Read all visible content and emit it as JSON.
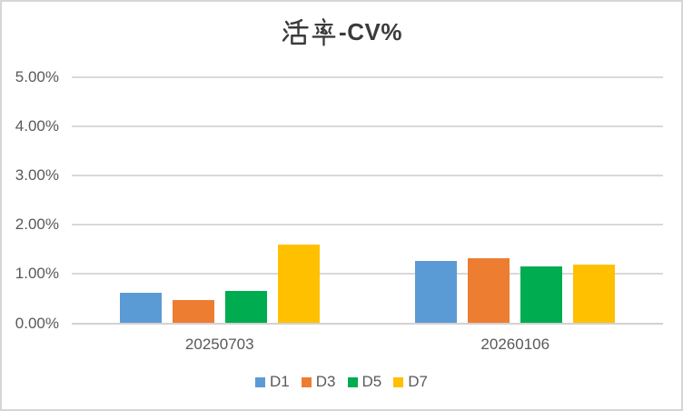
{
  "window": {
    "background": "#ffffff",
    "border_color": "#d6d6d6"
  },
  "chart_data": {
    "type": "bar",
    "title": "活率-CV%",
    "title_hanzi": "活率",
    "title_latin": "-CV%",
    "categories": [
      "20250703",
      "20260106"
    ],
    "series": [
      {
        "name": "D1",
        "color": "#5B9BD5",
        "values": [
          0.62,
          1.27
        ]
      },
      {
        "name": "D3",
        "color": "#ED7D31",
        "values": [
          0.48,
          1.33
        ]
      },
      {
        "name": "D5",
        "color": "#00AC50",
        "values": [
          0.66,
          1.16
        ]
      },
      {
        "name": "D7",
        "color": "#FFC000",
        "values": [
          1.59,
          1.19
        ]
      }
    ],
    "xlabel": "",
    "ylabel": "",
    "y_ticks": [
      "0.00%",
      "1.00%",
      "2.00%",
      "3.00%",
      "4.00%",
      "5.00%"
    ],
    "ylim": [
      0,
      5
    ],
    "unit": "percent",
    "grid": true,
    "legend_position": "bottom",
    "text_color": "#595959",
    "title_color": "#3b3b3b",
    "gridline_color": "#d9d9d9"
  }
}
